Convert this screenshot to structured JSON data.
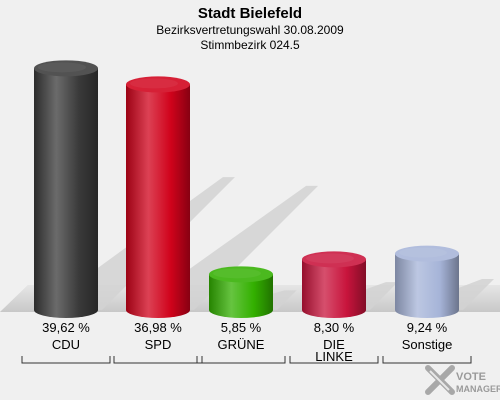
{
  "chart_data": {
    "type": "bar",
    "title": "Stadt Bielefeld",
    "subtitle_lines": [
      "Bezirksvertretungswahl 30.08.2009",
      "Stimmbezirk 024.5"
    ],
    "categories": [
      "CDU",
      "SPD",
      "GRÜNE",
      "DIE LINKE",
      "Sonstige"
    ],
    "category_lines": [
      [
        "CDU"
      ],
      [
        "SPD"
      ],
      [
        "GRÜNE"
      ],
      [
        "DIE",
        "LINKE"
      ],
      [
        "Sonstige"
      ]
    ],
    "values": [
      39.62,
      36.98,
      5.85,
      8.3,
      9.24
    ],
    "value_labels": [
      "39,62 %",
      "36,98 %",
      "5,85 %",
      "8,30 %",
      "9,24 %"
    ],
    "colors": [
      "#3a3a3a",
      "#d0021b",
      "#33b000",
      "#c8143c",
      "#a6b4d8"
    ],
    "ylim": [
      0,
      40
    ]
  },
  "watermark": {
    "line1": "VOTE",
    "line2": "MANAGER"
  }
}
